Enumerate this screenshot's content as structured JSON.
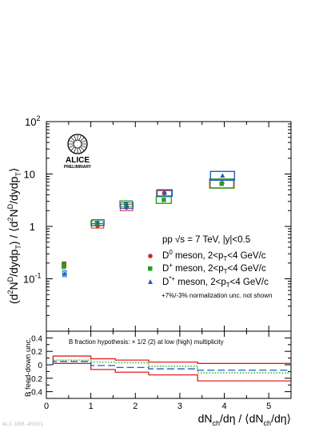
{
  "chart_data": [
    {
      "type": "scatter",
      "panel": "main",
      "y_scale": "log",
      "ylim": [
        0.01,
        100
      ],
      "xlim": [
        0,
        5.5
      ],
      "yticks": [
        "10-1",
        "1",
        "10",
        "102"
      ],
      "ylabel": "(d²N^D/dydp_T) / ⟨d²N^D/dydp_T⟩",
      "legend_header": "pp √s = 7 TeV, |y|<0.5",
      "legend_placement": "center-right",
      "note": "+7%/-3% normalization unc. not shown",
      "series": [
        {
          "name": "D0 meson, 2<pT<4 GeV/c",
          "color": "#d62020",
          "marker": "circle",
          "points": [
            {
              "x": 0.4,
              "y": 0.19,
              "ylow": 0.165,
              "yhigh": 0.21
            },
            {
              "x": 1.15,
              "y": 1.03,
              "ylow": 0.93,
              "yhigh": 1.13
            },
            {
              "x": 1.8,
              "y": 2.3,
              "ylow": 2.0,
              "yhigh": 2.65
            },
            {
              "x": 2.65,
              "y": 4.3,
              "ylow": 3.75,
              "yhigh": 4.85
            },
            {
              "x": 3.95,
              "y": 6.7,
              "ylow": 5.4,
              "yhigh": 8.0
            }
          ]
        },
        {
          "name": "D+ meson, 2<pT<4 GeV/c",
          "color": "#23a023",
          "marker": "square",
          "points": [
            {
              "x": 0.4,
              "y": 0.175,
              "ylow": 0.155,
              "yhigh": 0.2
            },
            {
              "x": 1.15,
              "y": 1.15,
              "ylow": 1.03,
              "yhigh": 1.28
            },
            {
              "x": 1.8,
              "y": 2.7,
              "ylow": 2.35,
              "yhigh": 3.1
            },
            {
              "x": 2.65,
              "y": 3.2,
              "ylow": 2.75,
              "yhigh": 3.7
            },
            {
              "x": 3.95,
              "y": 6.5,
              "ylow": 5.4,
              "yhigh": 8.0
            }
          ]
        },
        {
          "name": "D*+ meson, 2<pT<4 GeV/c",
          "color": "#1f5fbf",
          "marker": "triangle",
          "points": [
            {
              "x": 0.4,
              "y": 0.125,
              "ylow": 0.11,
              "yhigh": 0.142
            },
            {
              "x": 1.15,
              "y": 1.2,
              "ylow": 1.05,
              "yhigh": 1.35
            },
            {
              "x": 1.8,
              "y": 2.55,
              "ylow": 2.2,
              "yhigh": 2.9
            },
            {
              "x": 2.65,
              "y": 4.4,
              "ylow": 3.8,
              "yhigh": 5.0
            },
            {
              "x": 3.95,
              "y": 9.3,
              "ylow": 7.6,
              "yhigh": 11.2
            }
          ]
        }
      ],
      "logo": {
        "title": "ALICE",
        "subtitle": "PRELIMINARY"
      }
    },
    {
      "type": "line",
      "panel": "ratio",
      "xlabel": "dN_ch/dη / ⟨dN_ch/dη⟩",
      "ylabel": "B feed-down unc.",
      "xlim": [
        0,
        5.5
      ],
      "ylim": [
        -0.5,
        0.5
      ],
      "xticks": [
        "0",
        "1",
        "2",
        "3",
        "4",
        "5"
      ],
      "yticks": [
        "-0.4",
        "-0.2",
        "0",
        "0.2",
        "0.4"
      ],
      "title": "B fraction hypothesis: × 1/2 (2) at low (high) multiplicity",
      "x_edges": [
        0.15,
        1.0,
        1.55,
        2.3,
        3.4,
        5.5
      ],
      "series": [
        {
          "name": "D0 upper",
          "color": "#e02020",
          "style": "solid",
          "values": [
            0.13,
            0.09,
            0.07,
            0.04,
            0.02
          ]
        },
        {
          "name": "D0 lower",
          "color": "#e02020",
          "style": "solid",
          "values": [
            0.02,
            -0.07,
            -0.11,
            -0.15,
            -0.24
          ]
        },
        {
          "name": "D+",
          "color": "#23a023",
          "style": "dotted",
          "values": [
            0.07,
            0.04,
            0.03,
            -0.02,
            -0.12
          ]
        },
        {
          "name": "D*+",
          "color": "#1f5fbf",
          "style": "dashed",
          "values": [
            0.05,
            -0.01,
            -0.04,
            -0.06,
            -0.08
          ]
        }
      ]
    }
  ],
  "footer": {
    "stamp": "ALI-DER-45031"
  }
}
